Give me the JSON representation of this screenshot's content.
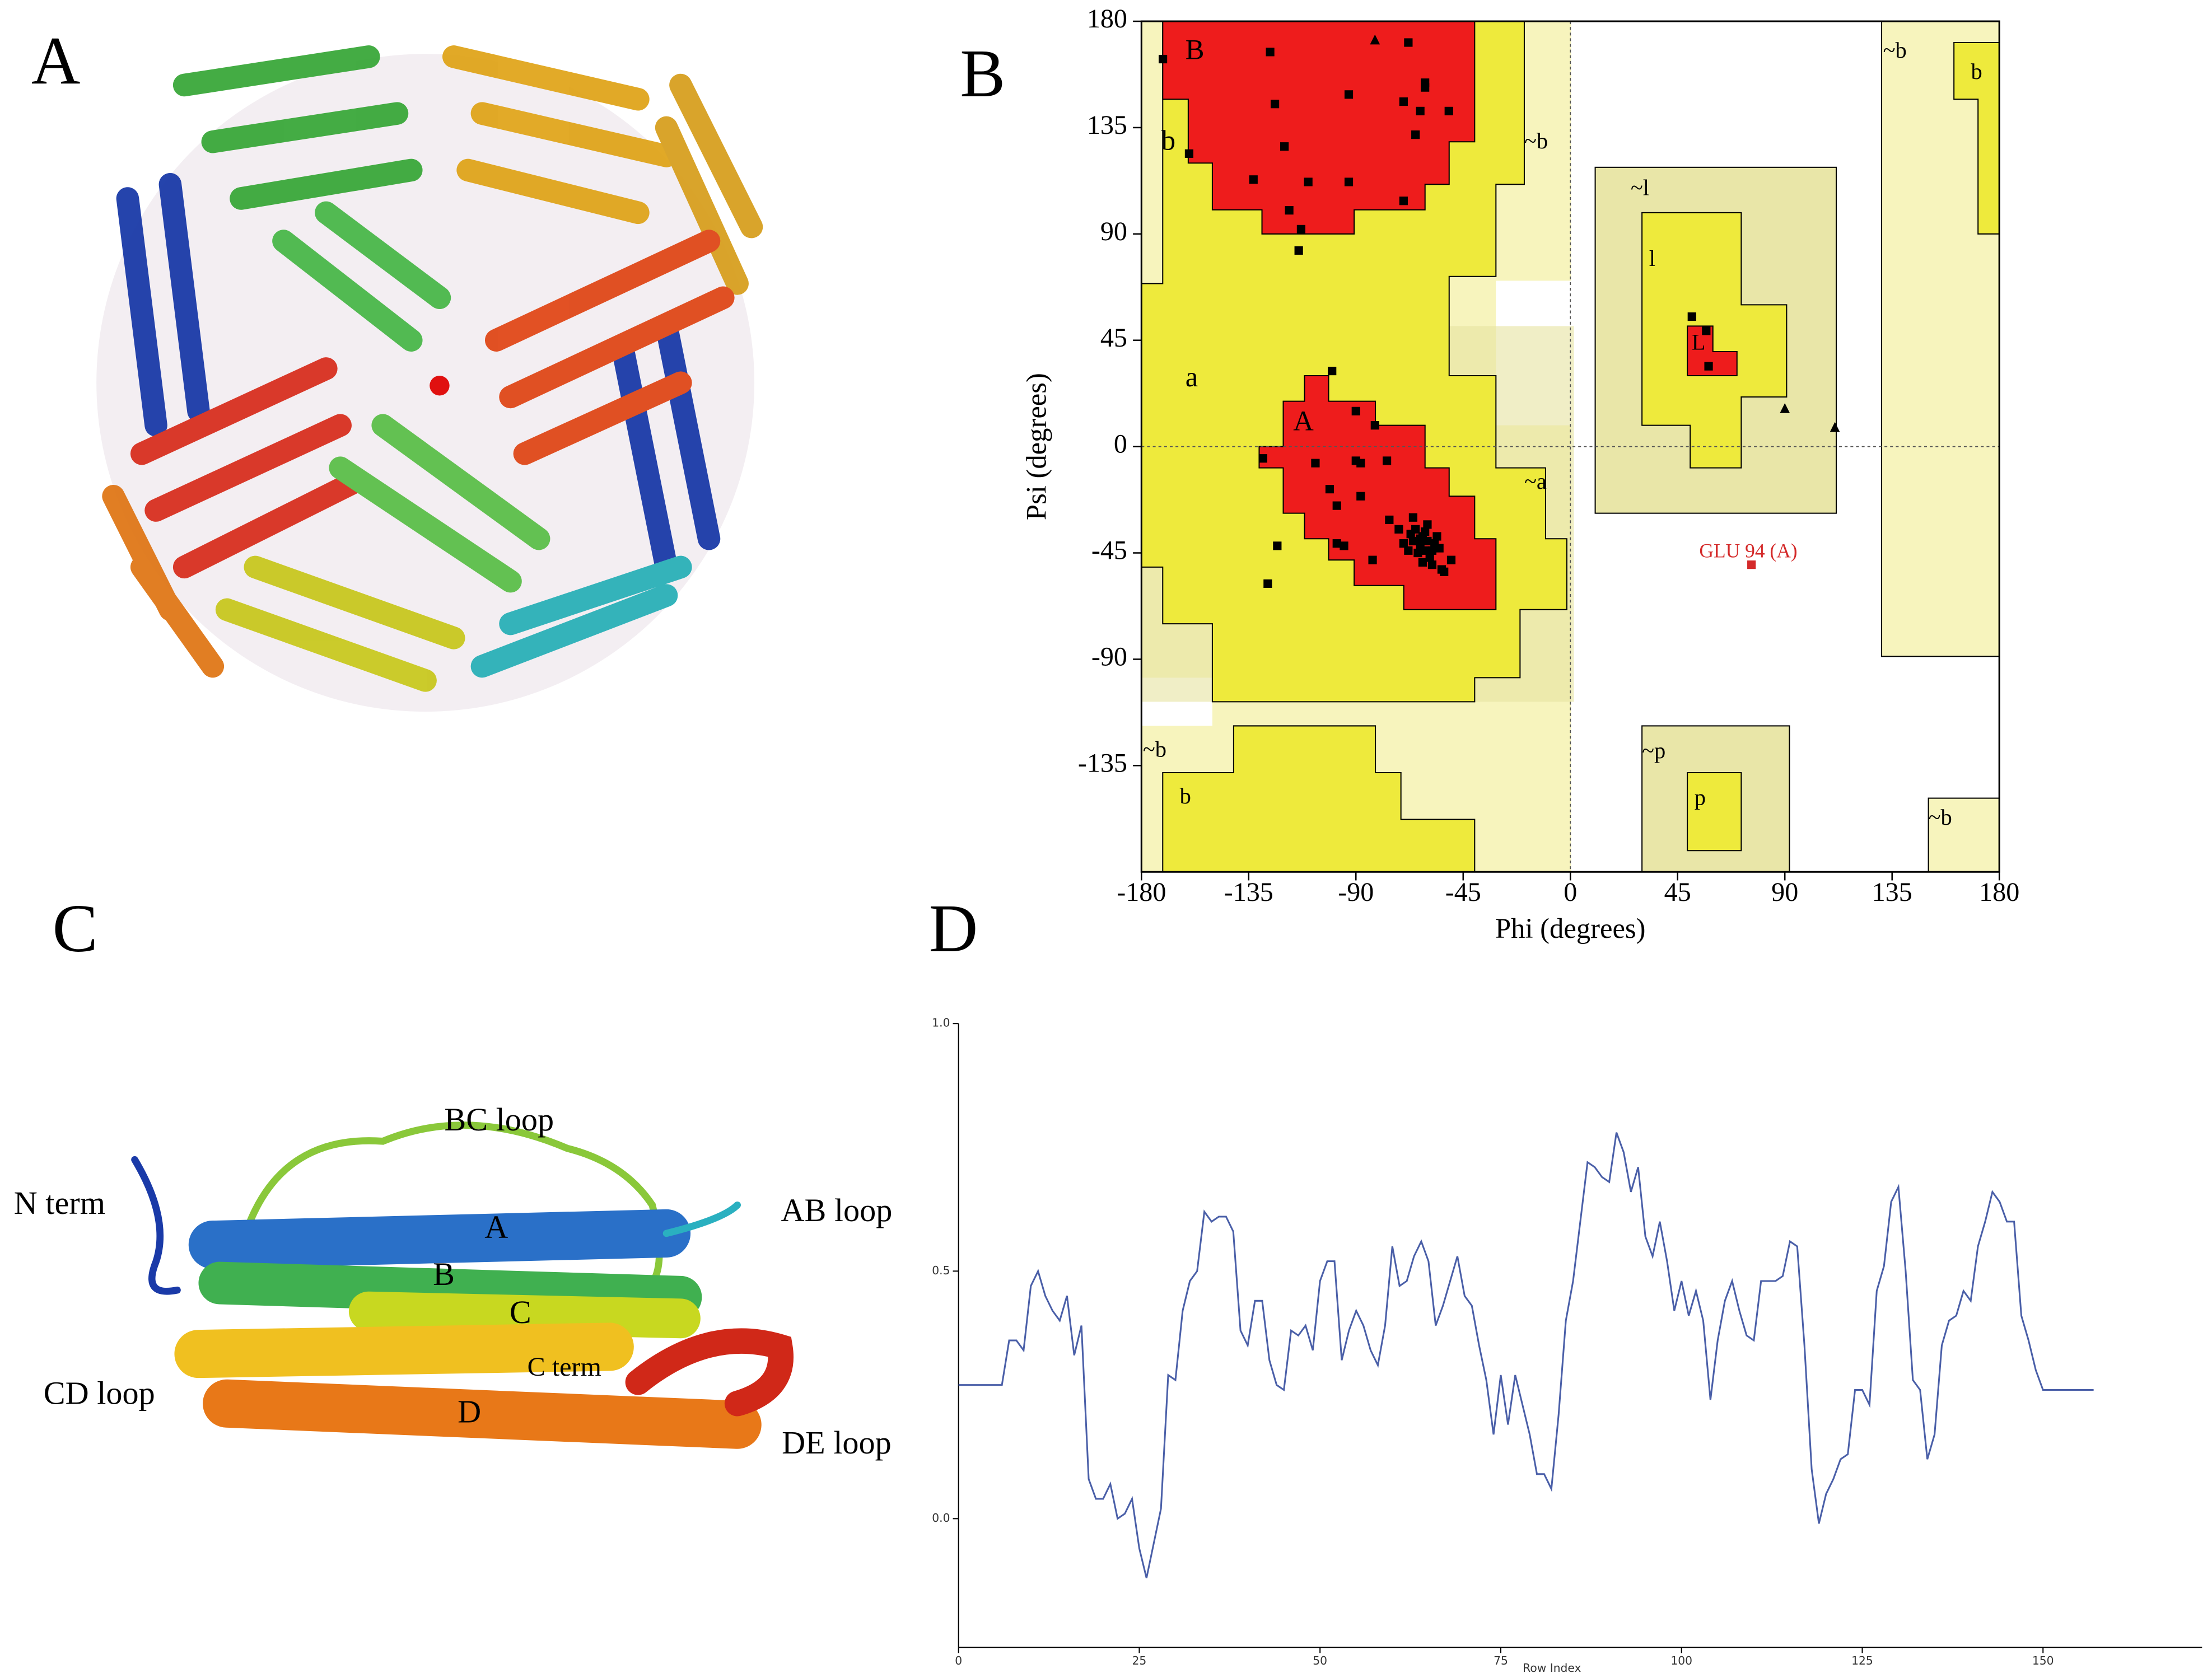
{
  "panel_labels": [
    "A",
    "B",
    "C",
    "D"
  ],
  "structure_labels": [
    "BC loop",
    "N term",
    "AB loop",
    "A",
    "B",
    "C",
    "C term",
    "CD loop",
    "D",
    "DE loop"
  ],
  "chart_data": [
    {
      "type": "scatter",
      "xlabel": "Phi (degrees)",
      "ylabel": "Psi (degrees)",
      "xlim": [
        -180,
        180
      ],
      "xticks": [
        -180,
        -135,
        -90,
        -45,
        0,
        45,
        90,
        135,
        180
      ],
      "ylim": [
        -180,
        180
      ],
      "yticks": [
        -135,
        -90,
        -45,
        0,
        45,
        90,
        135,
        180
      ],
      "region_labels": [
        "B",
        "b",
        "~b",
        "a",
        "A",
        "~a",
        "~l",
        "l",
        "L",
        "~b",
        "b",
        "~p",
        "p",
        "~b",
        "~b",
        "b"
      ],
      "annotations": [
        {
          "text": "GLU 94 (A)",
          "color": "#d42a2a"
        }
      ],
      "series": [
        {
          "marker": "square",
          "color": "#000000",
          "x": [
            -171,
            -126,
            -124,
            -93,
            -68,
            -61,
            -61,
            -70,
            -63,
            -65,
            -51,
            -120,
            -160,
            -133,
            -110,
            -93,
            -70,
            -118,
            -113,
            -114,
            51,
            57,
            58,
            -100,
            -90,
            -82,
            -129,
            -107,
            -90,
            -88,
            -77,
            -101,
            -88,
            -98,
            -76,
            -95,
            -98,
            -123,
            -127,
            -53,
            -83,
            -65,
            -62,
            -60,
            -63,
            -58,
            -66,
            -61,
            -57,
            -64,
            -59,
            -67,
            -55,
            -62,
            -60,
            -68,
            -56,
            -63,
            -61,
            -58,
            -70,
            -50,
            -66,
            -72,
            -54
          ],
          "y": [
            164,
            167,
            145,
            149,
            171,
            154,
            152,
            146,
            142,
            132,
            142,
            127,
            124,
            113,
            112,
            112,
            104,
            100,
            92,
            83,
            55,
            49,
            34,
            32,
            15,
            9,
            -5,
            -7,
            -6,
            -7,
            -6,
            -18,
            -21,
            -25,
            -31,
            -42,
            -41,
            -42,
            -58,
            -53,
            -48,
            -35,
            -38,
            -40,
            -42,
            -44,
            -40,
            -36,
            -41,
            -45,
            -47,
            -37,
            -43,
            -49,
            -33,
            -44,
            -38,
            -39,
            -44,
            -50,
            -41,
            -48,
            -30,
            -35,
            -52
          ]
        },
        {
          "marker": "triangle",
          "color": "#000000",
          "x": [
            -82,
            90,
            111
          ],
          "y": [
            172,
            16,
            8
          ]
        },
        {
          "marker": "square",
          "color": "#d42a2a",
          "x": [
            76
          ],
          "y": [
            -50
          ]
        }
      ]
    },
    {
      "type": "line",
      "xlabel": "Row Index",
      "color": "#4a5fa8",
      "xlim": [
        0,
        172
      ],
      "xticks": [
        0,
        25,
        50,
        75,
        100,
        125,
        150
      ],
      "ylim": [
        -0.26,
        1.0
      ],
      "yticks": [
        {
          "value": 0,
          "label": "0.0"
        },
        {
          "value": 0.5,
          "label": "0.5"
        },
        {
          "value": 1,
          "label": "1.0"
        }
      ],
      "x": [
        0,
        1,
        2,
        3,
        4,
        5,
        6,
        7,
        8,
        9,
        10,
        11,
        12,
        13,
        14,
        15,
        16,
        17,
        18,
        19,
        20,
        21,
        22,
        23,
        24,
        25,
        26,
        27,
        28,
        29,
        30,
        31,
        32,
        33,
        34,
        35,
        36,
        37,
        38,
        39,
        40,
        41,
        42,
        43,
        44,
        45,
        46,
        47,
        48,
        49,
        50,
        51,
        52,
        53,
        54,
        55,
        56,
        57,
        58,
        59,
        60,
        61,
        62,
        63,
        64,
        65,
        66,
        67,
        68,
        69,
        70,
        71,
        72,
        73,
        74,
        75,
        76,
        77,
        78,
        79,
        80,
        81,
        82,
        83,
        84,
        85,
        86,
        87,
        88,
        89,
        90,
        91,
        92,
        93,
        94,
        95,
        96,
        97,
        98,
        99,
        100,
        101,
        102,
        103,
        104,
        105,
        106,
        107,
        108,
        109,
        110,
        111,
        112,
        113,
        114,
        115,
        116,
        117,
        118,
        119,
        120,
        121,
        122,
        123,
        124,
        125,
        126,
        127,
        128,
        129,
        130,
        131,
        132,
        133,
        134,
        135,
        136,
        137,
        138,
        139,
        140,
        141,
        142,
        143,
        144,
        145,
        146,
        147,
        148,
        149,
        150,
        151,
        152,
        153,
        154,
        155,
        156,
        157
      ],
      "values": [
        0.27,
        0.27,
        0.27,
        0.27,
        0.27,
        0.27,
        0.27,
        0.36,
        0.36,
        0.34,
        0.47,
        0.5,
        0.45,
        0.42,
        0.4,
        0.45,
        0.33,
        0.39,
        0.08,
        0.04,
        0.04,
        0.07,
        0,
        0.01,
        0.04,
        -0.06,
        -0.12,
        -0.05,
        0.02,
        0.29,
        0.28,
        0.42,
        0.48,
        0.5,
        0.62,
        0.6,
        0.61,
        0.61,
        0.58,
        0.38,
        0.35,
        0.44,
        0.44,
        0.32,
        0.27,
        0.26,
        0.38,
        0.37,
        0.39,
        0.34,
        0.48,
        0.52,
        0.52,
        0.32,
        0.38,
        0.42,
        0.39,
        0.34,
        0.31,
        0.39,
        0.55,
        0.47,
        0.48,
        0.53,
        0.56,
        0.52,
        0.39,
        0.43,
        0.48,
        0.53,
        0.45,
        0.43,
        0.35,
        0.28,
        0.17,
        0.29,
        0.19,
        0.29,
        0.23,
        0.17,
        0.09,
        0.09,
        0.06,
        0.21,
        0.4,
        0.48,
        0.6,
        0.72,
        0.71,
        0.69,
        0.68,
        0.78,
        0.74,
        0.66,
        0.71,
        0.57,
        0.53,
        0.6,
        0.52,
        0.42,
        0.48,
        0.41,
        0.46,
        0.4,
        0.24,
        0.36,
        0.44,
        0.48,
        0.42,
        0.37,
        0.36,
        0.48,
        0.48,
        0.48,
        0.49,
        0.56,
        0.55,
        0.35,
        0.1,
        -0.01,
        0.05,
        0.08,
        0.12,
        0.13,
        0.26,
        0.26,
        0.23,
        0.46,
        0.51,
        0.64,
        0.67,
        0.5,
        0.28,
        0.26,
        0.12,
        0.17,
        0.35,
        0.4,
        0.41,
        0.46,
        0.44,
        0.55,
        0.6,
        0.66,
        0.64,
        0.6,
        0.6,
        0.41,
        0.36,
        0.3,
        0.26,
        0.26,
        0.26,
        0.26,
        0.26,
        0.26,
        0.26,
        0.26
      ]
    }
  ]
}
